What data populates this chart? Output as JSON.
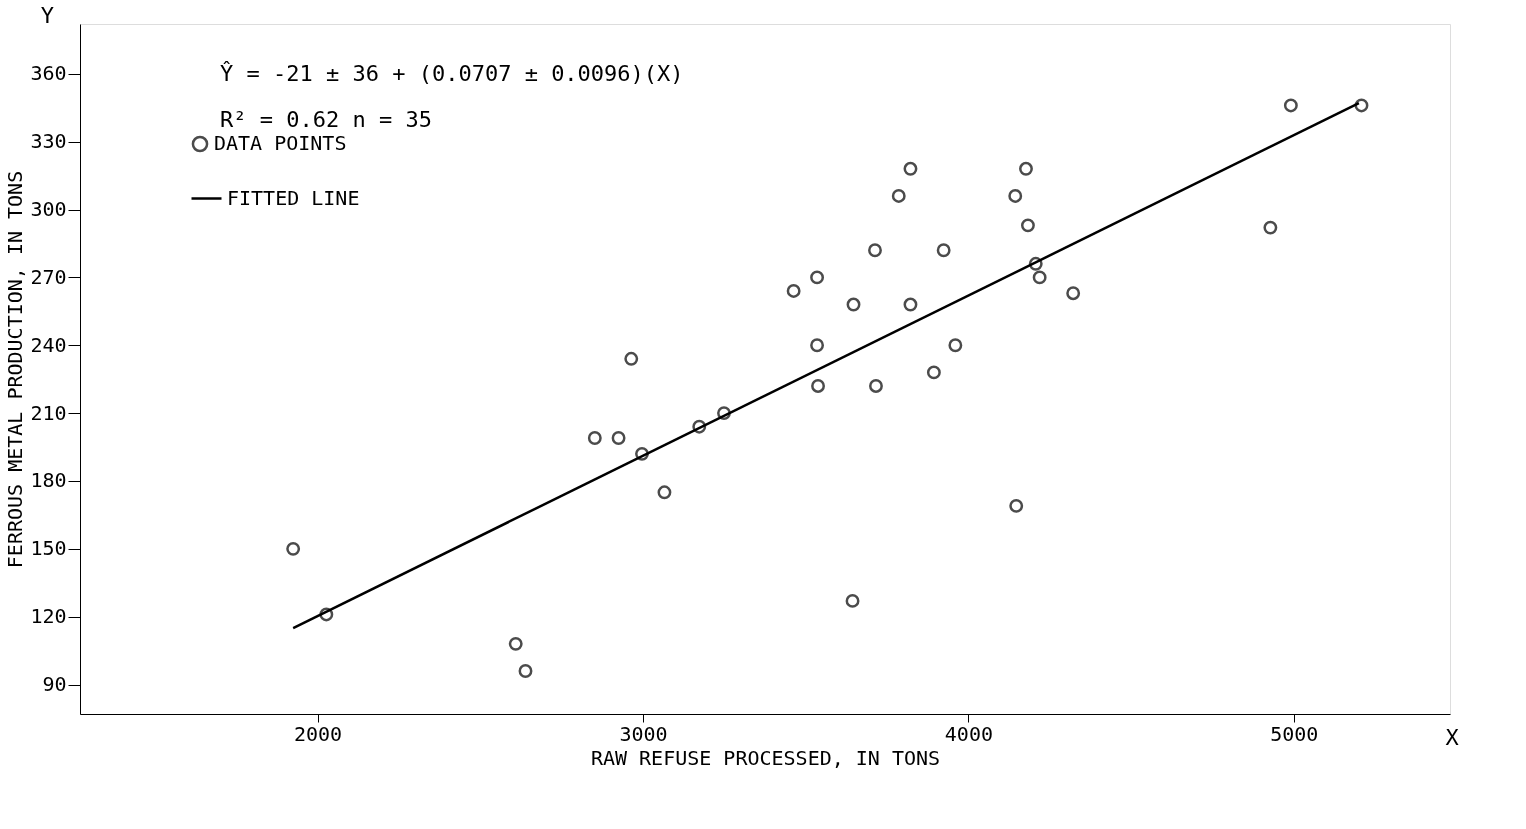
{
  "chart_data": {
    "type": "scatter",
    "xlabel": "RAW REFUSE PROCESSED, IN TONS",
    "ylabel": "FERROUS METAL PRODUCTION, IN TONS",
    "xlim": [
      1270,
      5480
    ],
    "ylim": [
      77,
      382
    ],
    "xticks": [
      2000,
      3000,
      4000,
      5000
    ],
    "yticks": [
      90,
      120,
      150,
      180,
      210,
      240,
      270,
      300,
      330,
      360
    ],
    "grid": false,
    "legend": "top left",
    "annotations": [
      "Ŷ = -21 ± 36 + (0.0707 ± 0.0096)(X)",
      "R² = 0.62 n = 35",
      "Y",
      "X"
    ],
    "series": [
      {
        "name": "DATA POINTS",
        "color": "#000000",
        "marker": "circle",
        "x": [
          1925,
          2027,
          2609,
          2639,
          2852,
          2925,
          2964,
          2997,
          3066,
          3173,
          3249,
          3463,
          3535,
          3535,
          3538,
          3647,
          3644,
          3713,
          3716,
          3786,
          3822,
          3822,
          3894,
          3924,
          3960,
          4144,
          4147,
          4177,
          4183,
          4207,
          4219,
          4322,
          4928,
          4991,
          5208
        ],
        "values": [
          150,
          121,
          108,
          96,
          199,
          199,
          234,
          192,
          175,
          204,
          210,
          264,
          270,
          240,
          222,
          258,
          127,
          282,
          222,
          306,
          318,
          258,
          228,
          282,
          240,
          306,
          169,
          318,
          293,
          276,
          270,
          263,
          292,
          346,
          346
        ]
      },
      {
        "name": "FITTED LINE",
        "type": "line",
        "color": "#000000",
        "line_style": "solid",
        "marker": "none",
        "x": [
          1925,
          5200
        ],
        "values": [
          115,
          347
        ]
      }
    ]
  }
}
